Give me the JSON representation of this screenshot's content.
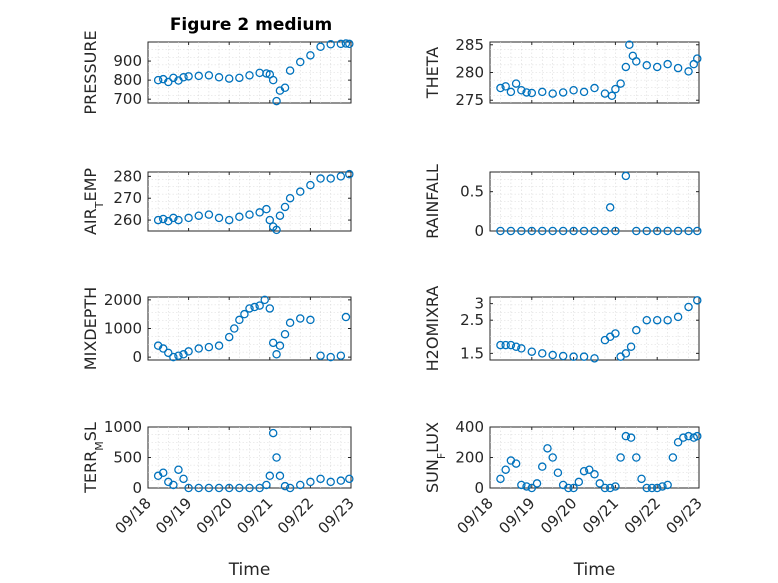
{
  "figure": {
    "title": "Figure 2 medium",
    "xlabel": "Time",
    "marker_color": "#0072BD",
    "x_tick_labels": [
      "09/18",
      "09/19",
      "09/20",
      "09/21",
      "09/22",
      "09/23"
    ]
  },
  "chart_data": [
    {
      "type": "scatter",
      "ylabel": "PRESSURE",
      "ylim": [
        680,
        1000
      ],
      "yticks": [
        700,
        800,
        900
      ],
      "x": [
        "09/18 06:00",
        "09/18 09:00",
        "09/18 12:00",
        "09/18 15:00",
        "09/18 18:00",
        "09/18 21:00",
        "09/19 00:00",
        "09/19 06:00",
        "09/19 12:00",
        "09/19 18:00",
        "09/20 00:00",
        "09/20 06:00",
        "09/20 12:00",
        "09/20 18:00",
        "09/20 22:00",
        "09/21 00:00",
        "09/21 02:00",
        "09/21 04:00",
        "09/21 06:00",
        "09/21 09:00",
        "09/21 12:00",
        "09/21 18:00",
        "09/22 00:00",
        "09/22 06:00",
        "09/22 12:00",
        "09/22 18:00",
        "09/22 21:00",
        "09/22 23:00"
      ],
      "y": [
        800,
        805,
        790,
        812,
        798,
        815,
        820,
        822,
        825,
        815,
        808,
        812,
        825,
        838,
        835,
        830,
        800,
        690,
        745,
        760,
        850,
        895,
        930,
        975,
        988,
        990,
        992,
        990
      ]
    },
    {
      "type": "scatter",
      "ylabel": "THETA",
      "ylim": [
        274.5,
        285.5
      ],
      "yticks": [
        275,
        280,
        285
      ],
      "x": [
        "09/18 06:00",
        "09/18 09:00",
        "09/18 12:00",
        "09/18 15:00",
        "09/18 18:00",
        "09/18 21:00",
        "09/19 00:00",
        "09/19 06:00",
        "09/19 12:00",
        "09/19 18:00",
        "09/20 00:00",
        "09/20 06:00",
        "09/20 12:00",
        "09/20 18:00",
        "09/20 22:00",
        "09/21 00:00",
        "09/21 03:00",
        "09/21 06:00",
        "09/21 08:00",
        "09/21 10:00",
        "09/21 12:00",
        "09/21 18:00",
        "09/22 00:00",
        "09/22 06:00",
        "09/22 12:00",
        "09/22 18:00",
        "09/22 21:00",
        "09/22 23:00"
      ],
      "y": [
        277.2,
        277.5,
        276.5,
        278.0,
        276.8,
        276.4,
        276.3,
        276.5,
        276.2,
        276.4,
        276.8,
        276.5,
        277.2,
        276.2,
        275.8,
        277.0,
        278.0,
        281.0,
        285.0,
        283.0,
        282.0,
        281.3,
        281.0,
        281.5,
        280.8,
        280.2,
        281.5,
        282.5
      ]
    },
    {
      "type": "scatter",
      "ylabel": "AIR_TEMP",
      "ylim": [
        255,
        282
      ],
      "yticks": [
        260,
        270,
        280
      ],
      "x": [
        "09/18 06:00",
        "09/18 09:00",
        "09/18 12:00",
        "09/18 15:00",
        "09/18 18:00",
        "09/19 00:00",
        "09/19 06:00",
        "09/19 12:00",
        "09/19 18:00",
        "09/20 00:00",
        "09/20 06:00",
        "09/20 12:00",
        "09/20 18:00",
        "09/20 22:00",
        "09/21 00:00",
        "09/21 02:00",
        "09/21 04:00",
        "09/21 06:00",
        "09/21 09:00",
        "09/21 12:00",
        "09/21 18:00",
        "09/22 00:00",
        "09/22 06:00",
        "09/22 12:00",
        "09/22 18:00",
        "09/22 23:00"
      ],
      "y": [
        260,
        260.5,
        259.5,
        261,
        260,
        261,
        262,
        262.5,
        261,
        260,
        261.5,
        262.5,
        263.5,
        265,
        260,
        257,
        255.5,
        262,
        266,
        270,
        273,
        276,
        279,
        279,
        280,
        281
      ]
    },
    {
      "type": "scatter",
      "ylabel": "RAINFALL",
      "ylim": [
        0,
        0.75
      ],
      "yticks": [
        0,
        0.5
      ],
      "ytick_labels": [
        "0",
        "0.5"
      ],
      "x": [
        "09/18 06:00",
        "09/18 12:00",
        "09/18 18:00",
        "09/19 00:00",
        "09/19 06:00",
        "09/19 12:00",
        "09/19 18:00",
        "09/20 00:00",
        "09/20 06:00",
        "09/20 12:00",
        "09/20 18:00",
        "09/20 21:00",
        "09/21 00:00",
        "09/21 06:00",
        "09/21 12:00",
        "09/21 18:00",
        "09/22 00:00",
        "09/22 06:00",
        "09/22 12:00",
        "09/22 18:00",
        "09/22 23:00"
      ],
      "y": [
        0,
        0,
        0,
        0,
        0,
        0,
        0,
        0,
        0,
        0,
        0,
        0.3,
        0,
        0.7,
        0,
        0,
        0,
        0,
        0,
        0,
        0
      ]
    },
    {
      "type": "scatter",
      "ylabel": "MIXDEPTH",
      "ylim": [
        -100,
        2100
      ],
      "yticks": [
        0,
        1000,
        2000
      ],
      "x": [
        "09/18 06:00",
        "09/18 09:00",
        "09/18 12:00",
        "09/18 15:00",
        "09/18 18:00",
        "09/18 21:00",
        "09/19 00:00",
        "09/19 06:00",
        "09/19 12:00",
        "09/19 18:00",
        "09/20 00:00",
        "09/20 03:00",
        "09/20 06:00",
        "09/20 09:00",
        "09/20 12:00",
        "09/20 15:00",
        "09/20 18:00",
        "09/20 21:00",
        "09/21 00:00",
        "09/21 02:00",
        "09/21 04:00",
        "09/21 06:00",
        "09/21 09:00",
        "09/21 12:00",
        "09/21 18:00",
        "09/22 00:00",
        "09/22 06:00",
        "09/22 12:00",
        "09/22 18:00",
        "09/22 21:00"
      ],
      "y": [
        400,
        300,
        150,
        0,
        50,
        100,
        200,
        300,
        350,
        400,
        700,
        1000,
        1300,
        1500,
        1700,
        1750,
        1800,
        2000,
        1700,
        500,
        100,
        400,
        800,
        1200,
        1350,
        1300,
        50,
        0,
        50,
        1400
      ]
    },
    {
      "type": "scatter",
      "ylabel": "H2OMIXRA",
      "ylim": [
        1.3,
        3.2
      ],
      "yticks": [
        1.5,
        2.5,
        3
      ],
      "ytick_labels": [
        "1.5",
        "2.5",
        "3"
      ],
      "x": [
        "09/18 06:00",
        "09/18 09:00",
        "09/18 12:00",
        "09/18 15:00",
        "09/18 18:00",
        "09/19 00:00",
        "09/19 06:00",
        "09/19 12:00",
        "09/19 18:00",
        "09/20 00:00",
        "09/20 06:00",
        "09/20 12:00",
        "09/20 18:00",
        "09/20 21:00",
        "09/21 00:00",
        "09/21 03:00",
        "09/21 06:00",
        "09/21 09:00",
        "09/21 12:00",
        "09/21 18:00",
        "09/22 00:00",
        "09/22 06:00",
        "09/22 12:00",
        "09/22 18:00",
        "09/22 23:00"
      ],
      "y": [
        1.75,
        1.75,
        1.75,
        1.7,
        1.65,
        1.55,
        1.5,
        1.45,
        1.42,
        1.4,
        1.4,
        1.35,
        1.9,
        2.0,
        2.1,
        1.4,
        1.5,
        1.7,
        2.2,
        2.5,
        2.5,
        2.5,
        2.6,
        2.9,
        3.1
      ]
    },
    {
      "type": "scatter",
      "ylabel": "TERR_MSL",
      "ylim": [
        0,
        1000
      ],
      "yticks": [
        0,
        500,
        1000
      ],
      "x": [
        "09/18 06:00",
        "09/18 09:00",
        "09/18 12:00",
        "09/18 15:00",
        "09/18 18:00",
        "09/18 21:00",
        "09/19 00:00",
        "09/19 06:00",
        "09/19 12:00",
        "09/19 18:00",
        "09/20 00:00",
        "09/20 06:00",
        "09/20 12:00",
        "09/20 18:00",
        "09/20 22:00",
        "09/21 00:00",
        "09/21 02:00",
        "09/21 04:00",
        "09/21 06:00",
        "09/21 09:00",
        "09/21 12:00",
        "09/21 18:00",
        "09/22 00:00",
        "09/22 06:00",
        "09/22 12:00",
        "09/22 18:00",
        "09/22 23:00"
      ],
      "y": [
        200,
        250,
        100,
        50,
        300,
        150,
        0,
        0,
        0,
        0,
        0,
        0,
        0,
        0,
        50,
        200,
        900,
        500,
        200,
        30,
        0,
        50,
        100,
        150,
        100,
        120,
        150
      ]
    },
    {
      "type": "scatter",
      "ylabel": "SUN_FLUX",
      "ylim": [
        0,
        400
      ],
      "yticks": [
        0,
        200,
        400
      ],
      "x": [
        "09/18 06:00",
        "09/18 09:00",
        "09/18 12:00",
        "09/18 15:00",
        "09/18 18:00",
        "09/18 21:00",
        "09/19 00:00",
        "09/19 03:00",
        "09/19 06:00",
        "09/19 09:00",
        "09/19 12:00",
        "09/19 15:00",
        "09/19 18:00",
        "09/19 21:00",
        "09/20 00:00",
        "09/20 03:00",
        "09/20 06:00",
        "09/20 09:00",
        "09/20 12:00",
        "09/20 15:00",
        "09/20 18:00",
        "09/20 21:00",
        "09/21 00:00",
        "09/21 03:00",
        "09/21 06:00",
        "09/21 09:00",
        "09/21 12:00",
        "09/21 15:00",
        "09/21 18:00",
        "09/21 21:00",
        "09/22 00:00",
        "09/22 03:00",
        "09/22 06:00",
        "09/22 09:00",
        "09/22 12:00",
        "09/22 15:00",
        "09/22 18:00",
        "09/22 21:00",
        "09/22 23:00"
      ],
      "y": [
        60,
        120,
        180,
        160,
        20,
        10,
        0,
        30,
        140,
        260,
        200,
        100,
        20,
        0,
        0,
        40,
        110,
        120,
        90,
        30,
        0,
        0,
        10,
        200,
        340,
        330,
        200,
        60,
        0,
        0,
        0,
        10,
        20,
        200,
        300,
        330,
        340,
        330,
        340
      ]
    }
  ]
}
